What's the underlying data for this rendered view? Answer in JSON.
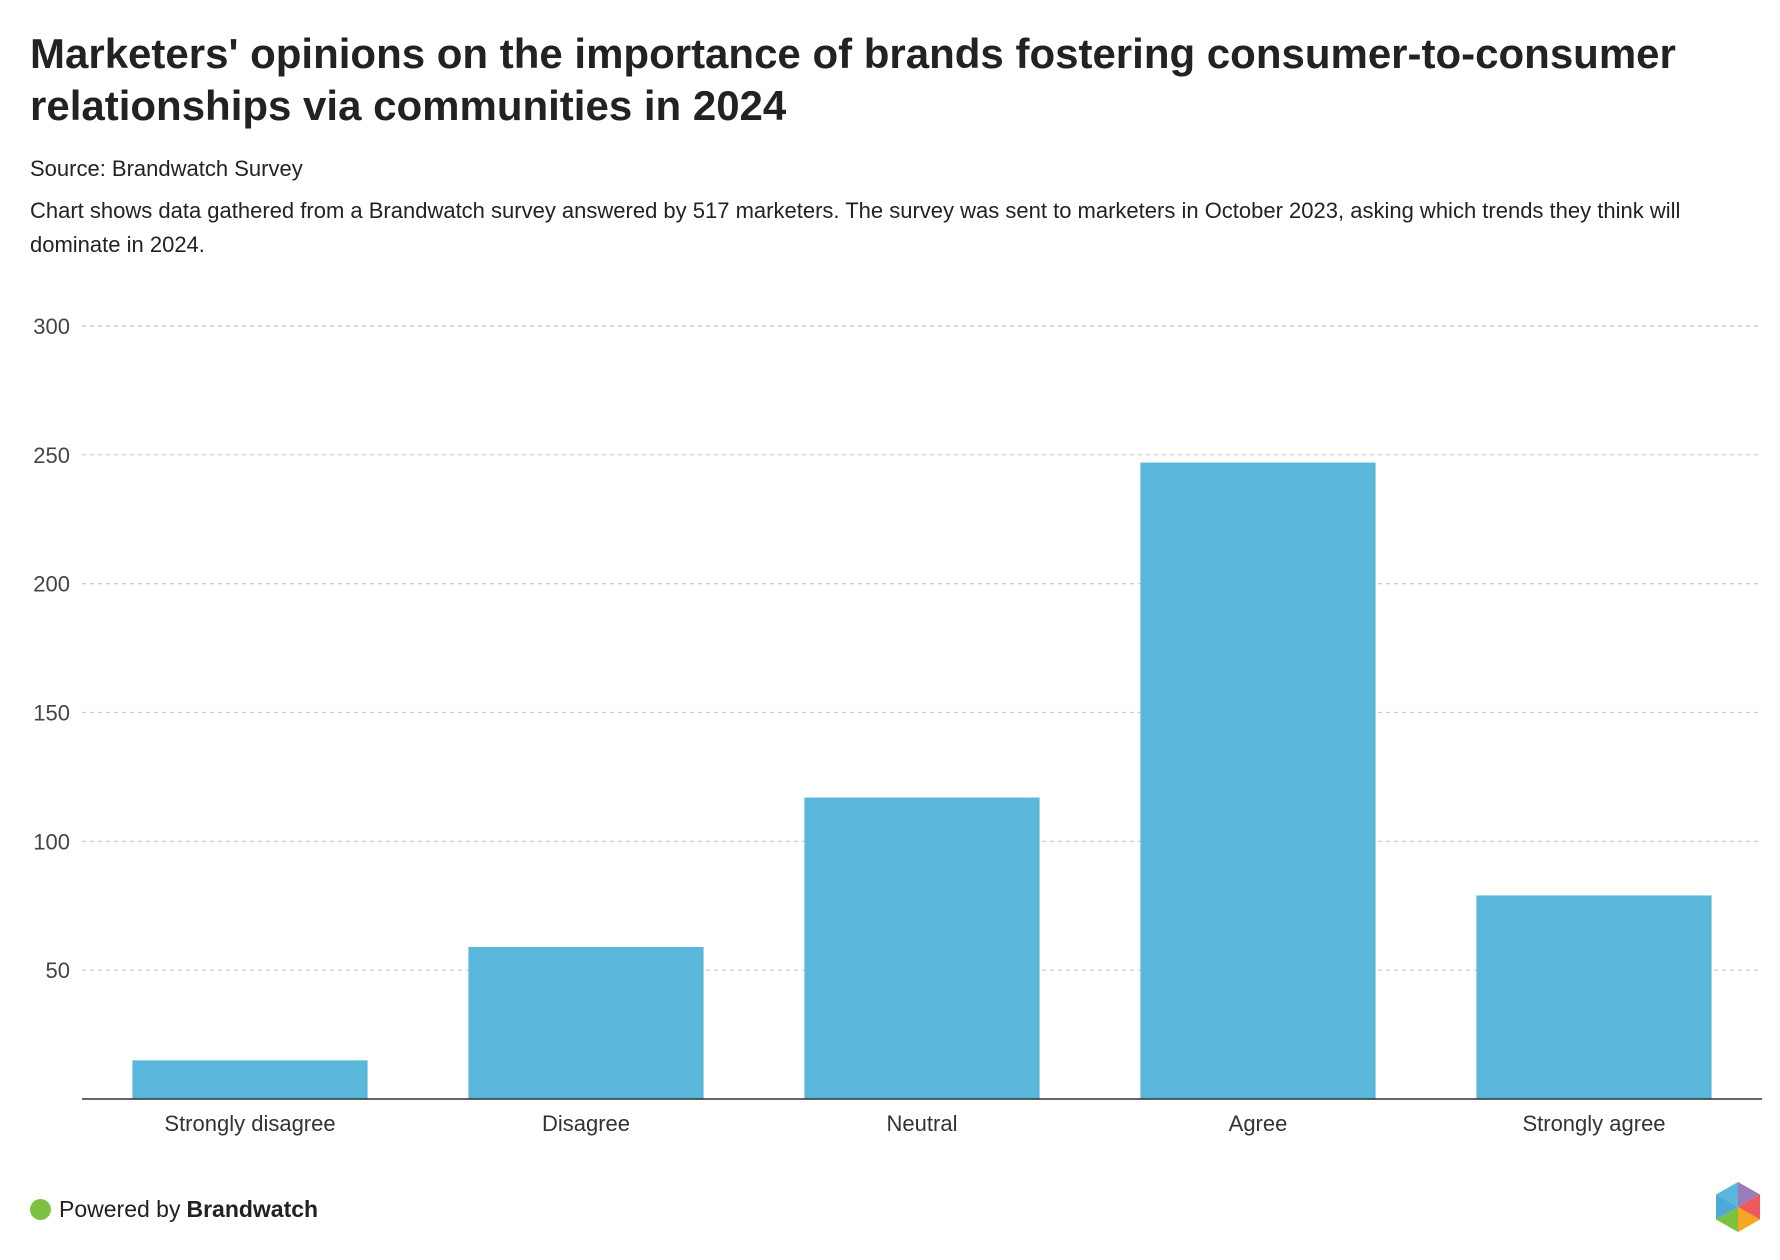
{
  "header": {
    "title": "Marketers' opinions on the importance of brands fostering consumer-to-consumer relationships via communities in 2024",
    "source": "Source: Brandwatch Survey",
    "description": "Chart shows data gathered from a Brandwatch survey answered by 517 marketers. The survey was sent to marketers in October 2023, asking which trends they think will dominate in 2024."
  },
  "chart_data": {
    "type": "bar",
    "categories": [
      "Strongly disagree",
      "Disagree",
      "Neutral",
      "Agree",
      "Strongly agree"
    ],
    "values": [
      15,
      59,
      117,
      247,
      79
    ],
    "ylim": [
      0,
      300
    ],
    "yticks": [
      50,
      100,
      150,
      200,
      250,
      300
    ],
    "grid": true,
    "legend": "none",
    "bar_color": "#5ab7dc"
  },
  "footer": {
    "powered_by": "Powered by",
    "brand": "Brandwatch",
    "dot_color": "#7cc142",
    "logo_icon": "brandwatch-hexagon-logo"
  }
}
